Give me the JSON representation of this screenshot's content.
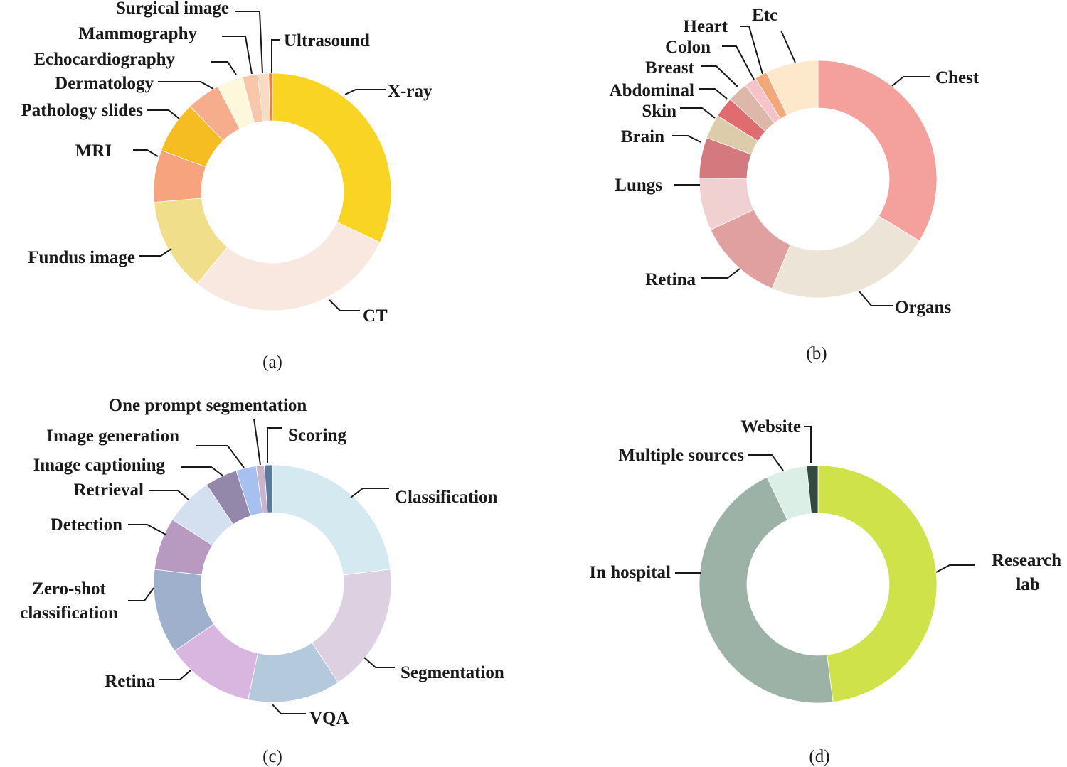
{
  "chart_data": [
    {
      "type": "pie",
      "subtype": "donut",
      "caption": "(a)",
      "slices": [
        {
          "label": "X-ray",
          "value": 31.5,
          "color": "#f9d423"
        },
        {
          "label": "CT",
          "value": 28.5,
          "color": "#f9e8df"
        },
        {
          "label": "Fundus image",
          "value": 12.5,
          "color": "#f0de8a"
        },
        {
          "label": "MRI",
          "value": 7.0,
          "color": "#f6a37e"
        },
        {
          "label": "Pathology slides",
          "value": 7.0,
          "color": "#f5bd22"
        },
        {
          "label": "Dermatology",
          "value": 4.5,
          "color": "#f6ad8c"
        },
        {
          "label": "Echocardiography",
          "value": 3.5,
          "color": "#fdf7dc"
        },
        {
          "label": "Mammography",
          "value": 2.0,
          "color": "#f8c6a8"
        },
        {
          "label": "Surgical image",
          "value": 1.5,
          "color": "#f6dcc0"
        },
        {
          "label": "Ultrasound",
          "value": 0.5,
          "color": "#e8804a"
        }
      ]
    },
    {
      "type": "pie",
      "subtype": "donut",
      "caption": "(b)",
      "slices": [
        {
          "label": "Chest",
          "value": 30.5,
          "color": "#f4a09c"
        },
        {
          "label": "Organs",
          "value": 20.5,
          "color": "#ede4d8"
        },
        {
          "label": "Retina",
          "value": 10.5,
          "color": "#e0a0a0"
        },
        {
          "label": "Lungs",
          "value": 6.5,
          "color": "#f0d0d0"
        },
        {
          "label": "Brain",
          "value": 5.0,
          "color": "#d47a7e"
        },
        {
          "label": "Skin",
          "value": 3.0,
          "color": "#dcccaa"
        },
        {
          "label": "Abdominal",
          "value": 2.5,
          "color": "#e06c70"
        },
        {
          "label": "Breast",
          "value": 2.5,
          "color": "#ddb8a8"
        },
        {
          "label": "Colon",
          "value": 1.5,
          "color": "#f7c2c8"
        },
        {
          "label": "Heart",
          "value": 1.5,
          "color": "#f2a878"
        },
        {
          "label": "Etc",
          "value": 6.5,
          "color": "#fde8cc"
        }
      ]
    },
    {
      "type": "pie",
      "subtype": "donut",
      "caption": "(c)",
      "slices": [
        {
          "label": "Classification",
          "value": 21.0,
          "color": "#d4e9f0"
        },
        {
          "label": "Segmentation",
          "value": 16.0,
          "color": "#ddd0e0"
        },
        {
          "label": "VQA",
          "value": 11.5,
          "color": "#b4cadc"
        },
        {
          "label": "Retina",
          "value": 11.0,
          "color": "#d9b6e0"
        },
        {
          "label": "Zero-shot classification",
          "value": 10.5,
          "color": "#9fb0cc"
        },
        {
          "label": "Detection",
          "value": 6.5,
          "color": "#b89ac0"
        },
        {
          "label": "Retrieval",
          "value": 6.0,
          "color": "#d4e0f0"
        },
        {
          "label": "Image captioning",
          "value": 4.0,
          "color": "#9488aa"
        },
        {
          "label": "Image generation",
          "value": 2.5,
          "color": "#a8c0f0"
        },
        {
          "label": "One prompt segmentation",
          "value": 1.0,
          "color": "#c8b4cc"
        },
        {
          "label": "Scoring",
          "value": 1.0,
          "color": "#5a7aa0"
        }
      ]
    },
    {
      "type": "pie",
      "subtype": "donut",
      "caption": "(d)",
      "slices": [
        {
          "label": "Research lab",
          "value": 47.5,
          "color": "#d0e24a"
        },
        {
          "label": "In hospital",
          "value": 44.5,
          "color": "#9cb2a6"
        },
        {
          "label": "Multiple sources",
          "value": 5.5,
          "color": "#dcefe6"
        },
        {
          "label": "Website",
          "value": 1.5,
          "color": "#344a40"
        }
      ]
    }
  ]
}
